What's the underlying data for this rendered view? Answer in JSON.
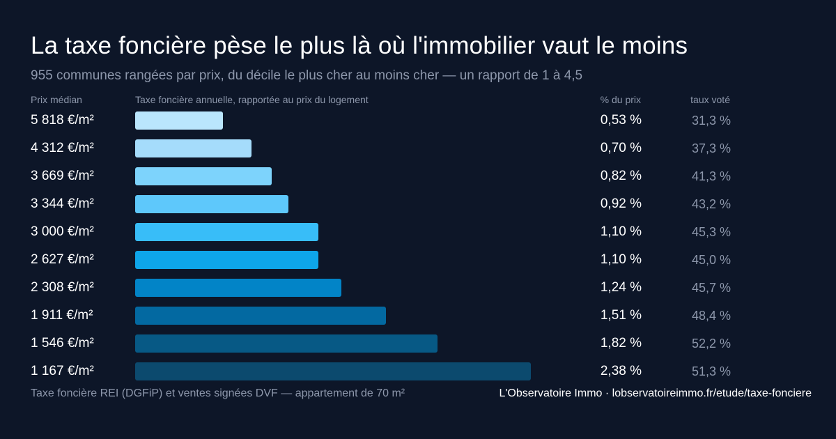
{
  "header": {
    "title": "La taxe foncière pèse le plus là où l'immobilier vaut le moins",
    "subtitle": "955 communes rangées par prix, du décile le plus cher au moins cher — un rapport de 1 à 4,5"
  },
  "columns": {
    "price": "Prix médian",
    "bar": "Taxe foncière annuelle, rapportée au prix du logement",
    "pct": "% du prix",
    "rate": "taux voté"
  },
  "footer": {
    "source": "Taxe foncière REI (DGFiP) et ventes signées DVF — appartement de 70 m²",
    "brand": "L'Observatoire Immo · lobservatoireimmo.fr/etude/taxe-fonciere"
  },
  "chart_data": {
    "type": "bar",
    "orientation": "horizontal",
    "title": "La taxe foncière pèse le plus là où l'immobilier vaut le moins",
    "subtitle": "955 communes rangées par prix, du décile le plus cher au moins cher — un rapport de 1 à 4,5",
    "categories": [
      "5 818 €/m²",
      "4 312 €/m²",
      "3 669 €/m²",
      "3 344 €/m²",
      "3 000 €/m²",
      "2 627 €/m²",
      "2 308 €/m²",
      "1 911 €/m²",
      "1 546 €/m²",
      "1 167 €/m²"
    ],
    "values": [
      0.53,
      0.7,
      0.82,
      0.92,
      1.1,
      1.1,
      1.24,
      1.51,
      1.82,
      2.38
    ],
    "value_labels": [
      "0,53 %",
      "0,70 %",
      "0,82 %",
      "0,92 %",
      "1,10 %",
      "1,10 %",
      "1,24 %",
      "1,51 %",
      "1,82 %",
      "2,38 %"
    ],
    "rate_labels": [
      "31,3 %",
      "37,3 %",
      "41,3 %",
      "43,2 %",
      "45,3 %",
      "45,0 %",
      "45,7 %",
      "48,4 %",
      "52,2 %",
      "51,3 %"
    ],
    "colors": [
      "#bae6fd",
      "#a5dcfb",
      "#7dd3fc",
      "#5ec8fb",
      "#38bdf8",
      "#0ea5e9",
      "#0284c7",
      "#0369a1",
      "#075985",
      "#0c4a6e"
    ],
    "xlim": [
      0,
      2.38
    ],
    "grid": false,
    "legend": "none"
  }
}
